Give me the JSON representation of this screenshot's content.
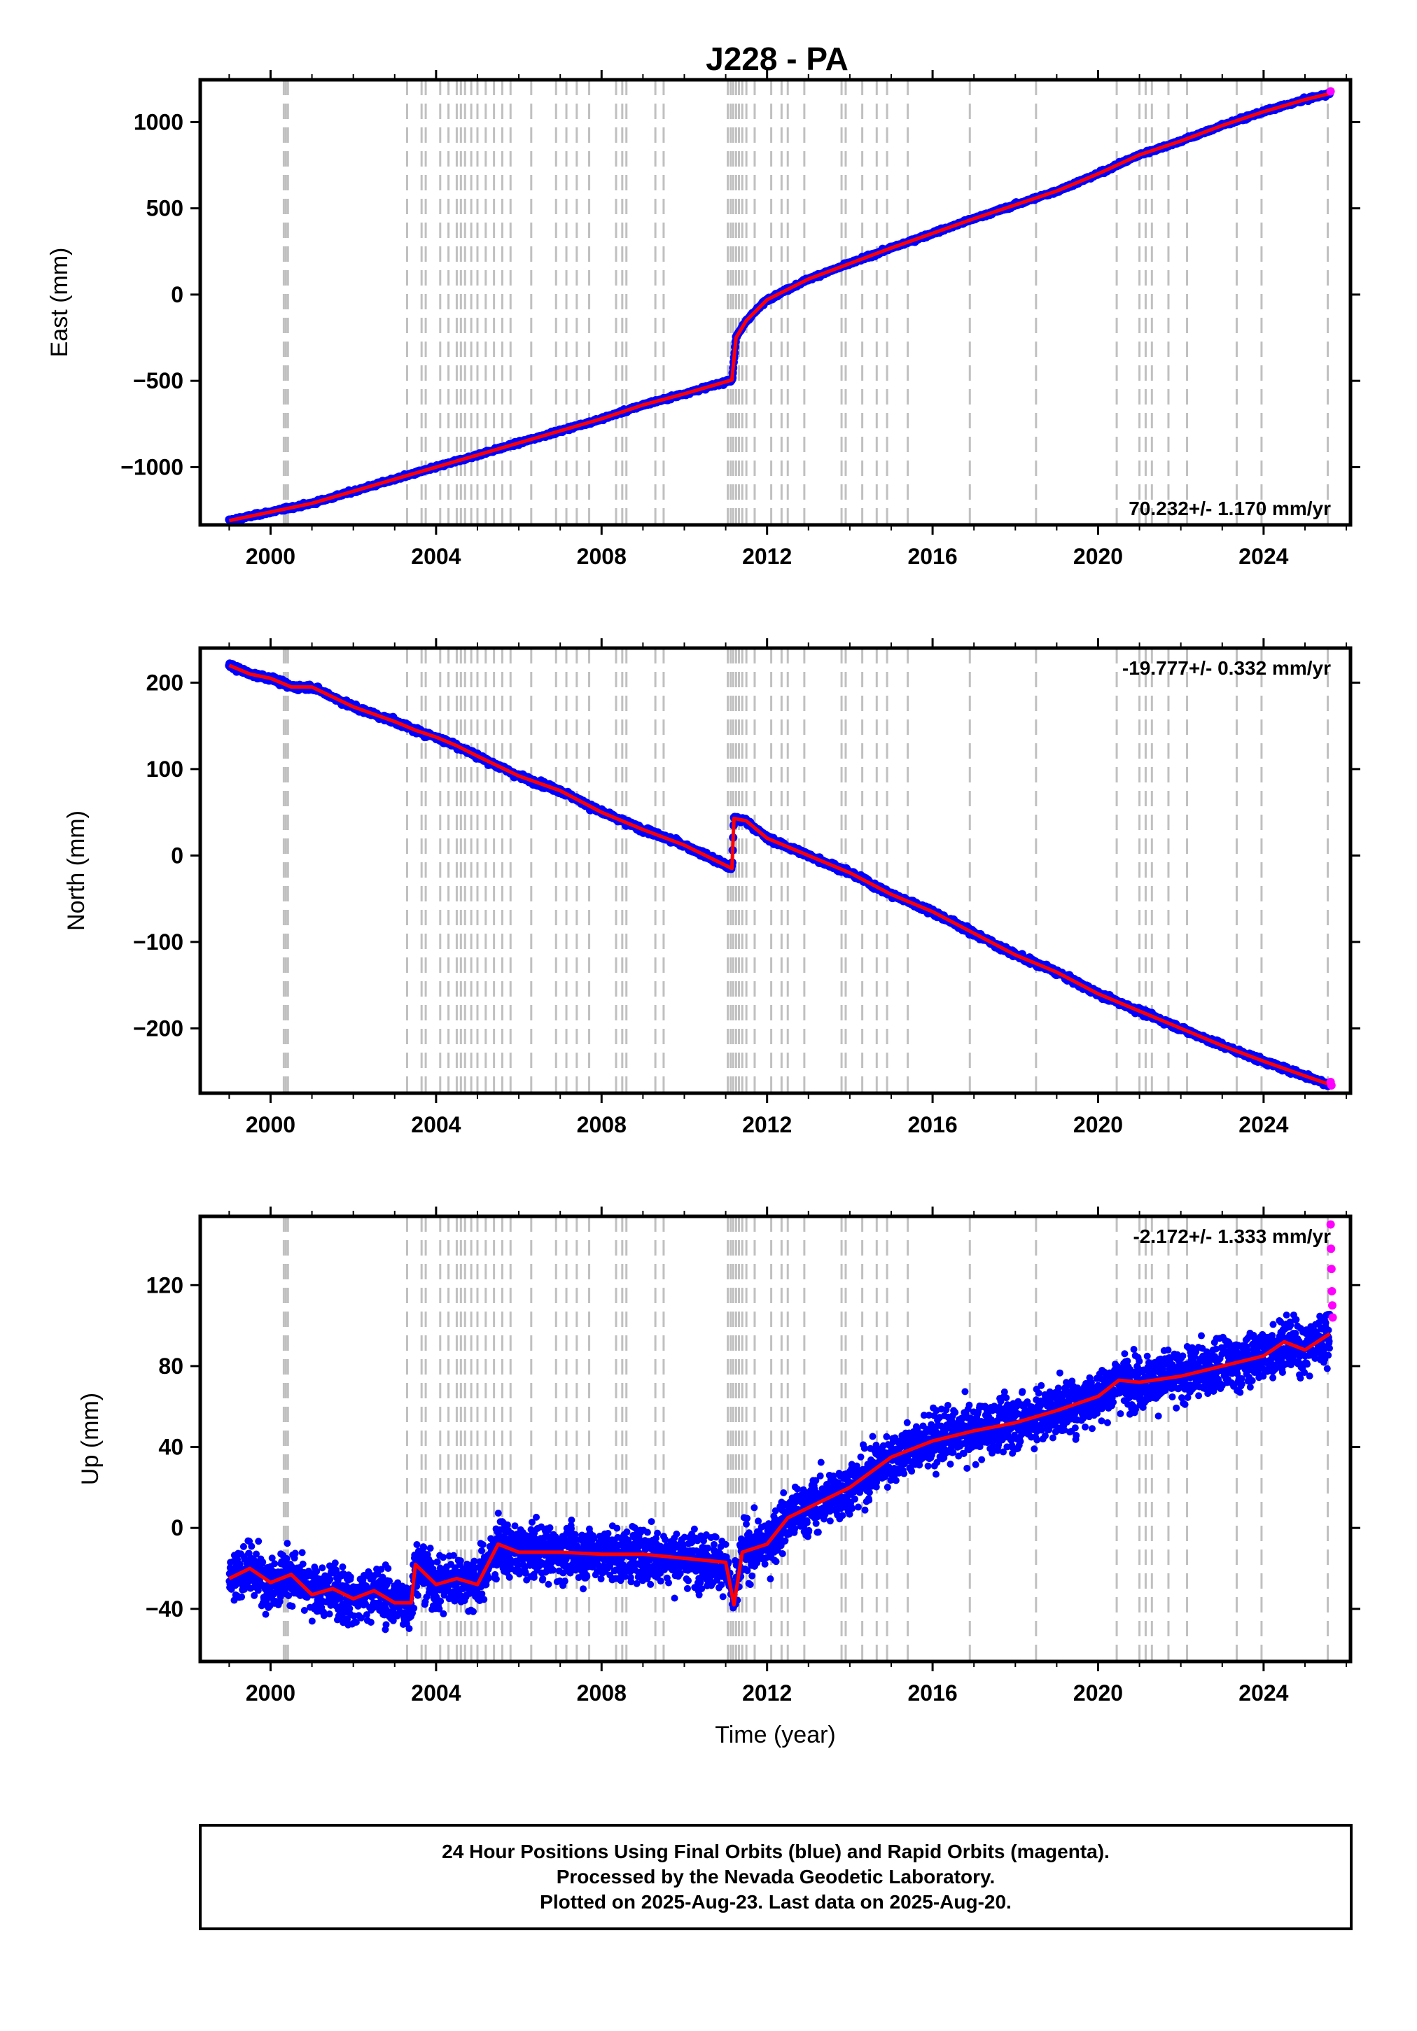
{
  "title": "J228 - PA",
  "colors": {
    "final_orbits": "#0000ff",
    "rapid_orbits": "#ff00ff",
    "model": "#ff0000",
    "event_lines": "#c0c0c0"
  },
  "footer": {
    "line1": "24 Hour Positions Using Final Orbits (blue) and Rapid Orbits (magenta).",
    "line2": "Processed by the Nevada Geodetic Laboratory.",
    "line3": "Plotted on 2025-Aug-23. Last data on 2025-Aug-20."
  },
  "chart_data": [
    {
      "type": "scatter",
      "title": "J228 - PA",
      "ylabel": "East (mm)",
      "xlabel": "",
      "rate_label": "70.232+/- 1.170 mm/yr",
      "rate_position": "bottom-right",
      "xlim": [
        1998.3,
        2026.1
      ],
      "ylim": [
        -1335,
        1245
      ],
      "xticks": [
        2000,
        2004,
        2008,
        2012,
        2016,
        2020,
        2024
      ],
      "yticks": [
        -1000,
        -500,
        0,
        500,
        1000
      ],
      "ytick_labels": [
        "−1000",
        "−500",
        "0",
        "500",
        "1000"
      ],
      "series": [
        {
          "role": "final",
          "x": [
            1999.0,
            2000.0,
            2001.0,
            2002.0,
            2003.0,
            2004.0,
            2005.0,
            2006.0,
            2007.0,
            2008.0,
            2009.0,
            2010.0,
            2011.15,
            2011.25,
            2011.5,
            2012.0,
            2013.0,
            2014.0,
            2015.0,
            2016.0,
            2017.0,
            2018.0,
            2019.0,
            2020.0,
            2021.0,
            2022.0,
            2023.0,
            2024.0,
            2025.0,
            2025.6
          ],
          "y": [
            -1310,
            -1260,
            -1210,
            -1140,
            -1070,
            -1000,
            -930,
            -860,
            -790,
            -720,
            -640,
            -575,
            -495,
            -250,
            -150,
            -30,
            90,
            180,
            270,
            355,
            440,
            520,
            600,
            700,
            810,
            890,
            980,
            1060,
            1130,
            1165
          ]
        },
        {
          "role": "rapid",
          "x": [
            2025.62
          ],
          "y": [
            1178
          ]
        }
      ]
    },
    {
      "type": "scatter",
      "ylabel": "North (mm)",
      "xlabel": "",
      "rate_label": "-19.777+/- 0.332 mm/yr",
      "rate_position": "top-right",
      "xlim": [
        1998.3,
        2026.1
      ],
      "ylim": [
        -275,
        240
      ],
      "xticks": [
        2000,
        2004,
        2008,
        2012,
        2016,
        2020,
        2024
      ],
      "yticks": [
        -200,
        -100,
        0,
        100,
        200
      ],
      "ytick_labels": [
        "−200",
        "−100",
        "0",
        "100",
        "200"
      ],
      "series": [
        {
          "role": "final",
          "x": [
            1999.0,
            1999.5,
            2000.0,
            2000.5,
            2001.0,
            2002.0,
            2003.0,
            2003.5,
            2004.0,
            2004.5,
            2005.0,
            2006.0,
            2007.0,
            2008.0,
            2009.0,
            2010.0,
            2011.15,
            2011.2,
            2011.5,
            2012.0,
            2013.0,
            2014.0,
            2015.0,
            2016.0,
            2017.0,
            2018.0,
            2019.0,
            2020.0,
            2021.0,
            2022.0,
            2023.0,
            2024.0,
            2025.0,
            2025.6
          ],
          "y": [
            220,
            210,
            205,
            195,
            195,
            172,
            155,
            145,
            137,
            127,
            115,
            92,
            75,
            50,
            30,
            12,
            -15,
            43,
            40,
            20,
            0,
            -20,
            -45,
            -65,
            -90,
            -115,
            -135,
            -160,
            -180,
            -200,
            -220,
            -238,
            -255,
            -265
          ]
        },
        {
          "role": "rapid",
          "x": [
            2025.62,
            2025.64
          ],
          "y": [
            -262,
            -266
          ]
        }
      ]
    },
    {
      "type": "scatter",
      "ylabel": "Up (mm)",
      "xlabel": "Time (year)",
      "rate_label": "-2.172+/- 1.333 mm/yr",
      "rate_position": "top-right",
      "xlim": [
        1998.3,
        2026.1
      ],
      "ylim": [
        -66,
        154
      ],
      "xticks": [
        2000,
        2004,
        2008,
        2012,
        2016,
        2020,
        2024
      ],
      "yticks": [
        -40,
        0,
        40,
        80,
        120
      ],
      "ytick_labels": [
        "−40",
        "0",
        "40",
        "80",
        "120"
      ],
      "series": [
        {
          "role": "final",
          "x": [
            1999.0,
            1999.5,
            2000.0,
            2000.5,
            2001.0,
            2001.5,
            2002.0,
            2002.5,
            2003.0,
            2003.4,
            2003.5,
            2004.0,
            2004.5,
            2005.0,
            2005.5,
            2006.0,
            2007.0,
            2008.0,
            2009.0,
            2010.0,
            2011.0,
            2011.2,
            2011.4,
            2012.0,
            2012.5,
            2013.0,
            2014.0,
            2015.0,
            2016.0,
            2017.0,
            2018.0,
            2019.0,
            2020.0,
            2020.5,
            2021.0,
            2022.0,
            2023.0,
            2024.0,
            2024.5,
            2025.0,
            2025.6
          ],
          "y": [
            -25,
            -20,
            -27,
            -23,
            -33,
            -30,
            -35,
            -31,
            -37,
            -37,
            -18,
            -28,
            -25,
            -28,
            -8,
            -12,
            -12,
            -13,
            -13,
            -15,
            -17,
            -38,
            -12,
            -8,
            5,
            10,
            20,
            35,
            43,
            48,
            52,
            58,
            65,
            73,
            72,
            75,
            80,
            85,
            92,
            88,
            96
          ]
        },
        {
          "role": "rapid",
          "x": [
            2025.62,
            2025.63,
            2025.64,
            2025.65,
            2025.66,
            2025.67
          ],
          "y": [
            150,
            138,
            128,
            117,
            110,
            104
          ]
        }
      ]
    }
  ]
}
